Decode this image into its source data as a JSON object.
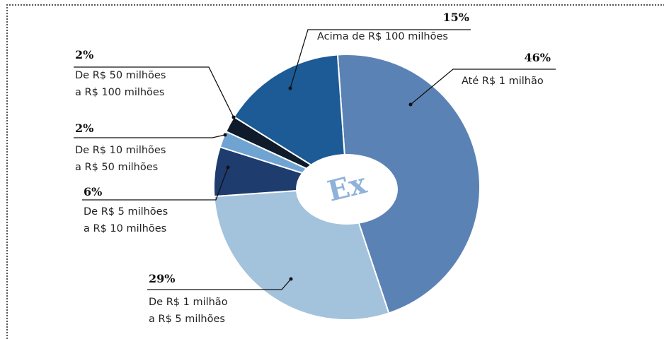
{
  "chart_data": {
    "type": "pie",
    "center_label": "Ex",
    "categories": [
      "Até R$ 1 milhão",
      "De R$ 1 milhão\na R$ 5 milhões",
      "De R$ 5 milhões\na R$ 10 milhões",
      "De R$ 10 milhões\na R$ 50 milhões",
      "De R$ 50 milhões\na R$ 100 milhões",
      "Acima de R$ 100 milhões"
    ],
    "values": [
      46,
      29,
      6,
      2,
      2,
      15
    ],
    "value_labels": [
      "46%",
      "29%",
      "6%",
      "2%",
      "2%",
      "15%"
    ],
    "colors": [
      "#5b82b4",
      "#a3c2dc",
      "#1e3c6e",
      "#6fa3d2",
      "#0f1a2a",
      "#1c5b96"
    ]
  }
}
